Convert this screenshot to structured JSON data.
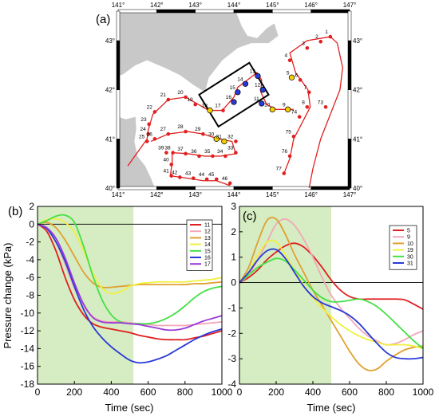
{
  "figure": {
    "panel_labels": [
      "(a)",
      "(b)",
      "(c)"
    ]
  },
  "colors": {
    "land": "#c8c8c8",
    "sea": "#ffffff",
    "route": "#e02020",
    "highlight_yellow": "#f5d000",
    "highlight_blue": "#2a3ad8",
    "shade": "#d6ecc2",
    "zero_line": "#000000"
  },
  "chart_data": [
    {
      "type": "map",
      "panel": "(a)",
      "lon_ticks_top": [
        "141°",
        "142°",
        "143°",
        "144°",
        "145°",
        "146°",
        "147°"
      ],
      "lon_ticks_bottom": [
        "141°",
        "142°",
        "143°",
        "144°",
        "145°",
        "146°",
        "147°"
      ],
      "lat_ticks_left": [
        "40°",
        "41°",
        "42°",
        "43°"
      ],
      "lat_ticks_right": [
        "40°",
        "41°",
        "42°",
        "43°"
      ],
      "xlim": [
        141,
        147
      ],
      "ylim": [
        40,
        43.6
      ],
      "routes": [
        {
          "points": [
            [
              145.95,
              40.0
            ],
            [
              146.05,
              40.4
            ],
            [
              146.25,
              41.0
            ],
            [
              146.55,
              41.6
            ],
            [
              146.75,
              42.0
            ],
            [
              146.82,
              42.45
            ],
            [
              146.68,
              42.95
            ],
            [
              146.5,
              43.08
            ]
          ]
        },
        {
          "points": [
            [
              145.3,
              40.3
            ],
            [
              145.45,
              40.6
            ],
            [
              145.55,
              41.0
            ],
            [
              145.85,
              41.45
            ],
            [
              145.98,
              41.65
            ],
            [
              145.92,
              42.0
            ],
            [
              145.6,
              42.35
            ],
            [
              145.45,
              42.75
            ],
            [
              145.9,
              43.0
            ],
            [
              146.5,
              43.08
            ]
          ]
        },
        {
          "points": [
            [
              145.55,
              41.6
            ],
            [
              145.1,
              41.6
            ],
            [
              144.85,
              41.7
            ],
            [
              144.7,
              41.95
            ],
            [
              144.72,
              42.2
            ],
            [
              144.6,
              42.35
            ],
            [
              144.35,
              42.2
            ],
            [
              144.1,
              42.05
            ],
            [
              144.0,
              41.85
            ],
            [
              143.7,
              41.58
            ],
            [
              143.35,
              41.58
            ],
            [
              142.75,
              41.85
            ],
            [
              142.3,
              41.8
            ],
            [
              141.9,
              41.5
            ],
            [
              141.78,
              41.18
            ],
            [
              141.75,
              41.0
            ],
            [
              141.25,
              40.45
            ]
          ]
        },
        {
          "points": [
            [
              141.85,
              40.95
            ],
            [
              142.3,
              41.1
            ],
            [
              142.8,
              41.15
            ],
            [
              143.2,
              41.1
            ],
            [
              143.6,
              41.0
            ],
            [
              143.95,
              40.95
            ],
            [
              144.05,
              40.7
            ],
            [
              143.65,
              40.65
            ],
            [
              143.25,
              40.65
            ],
            [
              142.8,
              40.7
            ],
            [
              142.4,
              40.72
            ],
            [
              142.4,
              40.5
            ],
            [
              142.35,
              40.25
            ],
            [
              142.8,
              40.2
            ],
            [
              143.2,
              40.15
            ],
            [
              143.55,
              40.15
            ],
            [
              143.9,
              40.05
            ]
          ]
        }
      ],
      "stations": [
        {
          "id": "1",
          "lon": 146.5,
          "lat": 43.08,
          "color": "red"
        },
        {
          "id": "2",
          "lon": 146.25,
          "lat": 42.98,
          "color": "red"
        },
        {
          "id": "3",
          "lon": 145.9,
          "lat": 42.85,
          "color": "red"
        },
        {
          "id": "4",
          "lon": 145.45,
          "lat": 42.6,
          "color": "red"
        },
        {
          "id": "5",
          "lon": 145.5,
          "lat": 42.25,
          "color": "yellow"
        },
        {
          "id": "6",
          "lon": 145.72,
          "lat": 42.2,
          "color": "red"
        },
        {
          "id": "7",
          "lon": 145.95,
          "lat": 41.95,
          "color": "red"
        },
        {
          "id": "8",
          "lon": 145.9,
          "lat": 41.65,
          "color": "red"
        },
        {
          "id": "9",
          "lon": 145.4,
          "lat": 41.6,
          "color": "yellow"
        },
        {
          "id": "10",
          "lon": 145.0,
          "lat": 41.6,
          "color": "yellow"
        },
        {
          "id": "11",
          "lon": 144.72,
          "lat": 41.72,
          "color": "blue"
        },
        {
          "id": "12",
          "lon": 144.75,
          "lat": 42.0,
          "color": "blue"
        },
        {
          "id": "13",
          "lon": 144.62,
          "lat": 42.28,
          "color": "blue"
        },
        {
          "id": "14",
          "lon": 144.3,
          "lat": 42.12,
          "color": "blue"
        },
        {
          "id": "15",
          "lon": 144.1,
          "lat": 41.95,
          "color": "blue"
        },
        {
          "id": "16",
          "lon": 144.0,
          "lat": 41.75,
          "color": "blue"
        },
        {
          "id": "17",
          "lon": 143.72,
          "lat": 41.58,
          "color": "red"
        },
        {
          "id": "18",
          "lon": 143.38,
          "lat": 41.58,
          "color": "yellow"
        },
        {
          "id": "19",
          "lon": 143.0,
          "lat": 41.7,
          "color": "red"
        },
        {
          "id": "20",
          "lon": 142.75,
          "lat": 41.85,
          "color": "red"
        },
        {
          "id": "21",
          "lon": 142.3,
          "lat": 41.8,
          "color": "red"
        },
        {
          "id": "22",
          "lon": 141.95,
          "lat": 41.55,
          "color": "red"
        },
        {
          "id": "23",
          "lon": 141.8,
          "lat": 41.3,
          "color": "red"
        },
        {
          "id": "24",
          "lon": 141.78,
          "lat": 41.1,
          "color": "red"
        },
        {
          "id": "25",
          "lon": 141.75,
          "lat": 40.95,
          "color": "red"
        },
        {
          "id": "26",
          "lon": 141.95,
          "lat": 41.0,
          "color": "red"
        },
        {
          "id": "27",
          "lon": 142.3,
          "lat": 41.1,
          "color": "red"
        },
        {
          "id": "28",
          "lon": 142.75,
          "lat": 41.15,
          "color": "red"
        },
        {
          "id": "29",
          "lon": 143.2,
          "lat": 41.1,
          "color": "red"
        },
        {
          "id": "30",
          "lon": 143.55,
          "lat": 41.0,
          "color": "yellow"
        },
        {
          "id": "31",
          "lon": 143.75,
          "lat": 40.95,
          "color": "yellow"
        },
        {
          "id": "32",
          "lon": 144.05,
          "lat": 40.95,
          "color": "red"
        },
        {
          "id": "33",
          "lon": 144.05,
          "lat": 40.72,
          "color": "red"
        },
        {
          "id": "34",
          "lon": 143.78,
          "lat": 40.65,
          "color": "red"
        },
        {
          "id": "35",
          "lon": 143.45,
          "lat": 40.65,
          "color": "red"
        },
        {
          "id": "36",
          "lon": 143.1,
          "lat": 40.65,
          "color": "red"
        },
        {
          "id": "37",
          "lon": 142.75,
          "lat": 40.7,
          "color": "red"
        },
        {
          "id": "38",
          "lon": 142.42,
          "lat": 40.72,
          "color": "red"
        },
        {
          "id": "39",
          "lon": 142.25,
          "lat": 40.72,
          "color": "red"
        },
        {
          "id": "40",
          "lon": 142.38,
          "lat": 40.48,
          "color": "red"
        },
        {
          "id": "41",
          "lon": 142.38,
          "lat": 40.25,
          "color": "red"
        },
        {
          "id": "42",
          "lon": 142.6,
          "lat": 40.22,
          "color": "red"
        },
        {
          "id": "43",
          "lon": 142.95,
          "lat": 40.2,
          "color": "red"
        },
        {
          "id": "44",
          "lon": 143.3,
          "lat": 40.18,
          "color": "red"
        },
        {
          "id": "45",
          "lon": 143.55,
          "lat": 40.18,
          "color": "red"
        },
        {
          "id": "46",
          "lon": 143.9,
          "lat": 40.1,
          "color": "red"
        },
        {
          "id": "73",
          "lon": 146.38,
          "lat": 41.65,
          "color": "red"
        },
        {
          "id": "74",
          "lon": 145.7,
          "lat": 41.45,
          "color": "red"
        },
        {
          "id": "75",
          "lon": 145.55,
          "lat": 41.05,
          "color": "red"
        },
        {
          "id": "76",
          "lon": 145.45,
          "lat": 40.65,
          "color": "red"
        },
        {
          "id": "77",
          "lon": 145.3,
          "lat": 40.3,
          "color": "red"
        }
      ],
      "box": [
        [
          143.1,
          41.9
        ],
        [
          144.4,
          42.55
        ],
        [
          144.9,
          41.9
        ],
        [
          143.6,
          41.25
        ]
      ]
    },
    {
      "type": "line",
      "panel": "(b)",
      "xlabel": "Time (sec)",
      "ylabel": "Pressure change (kPa)",
      "xlim": [
        0,
        1000
      ],
      "ylim": [
        -18,
        2
      ],
      "xticks": [
        0,
        200,
        400,
        600,
        800,
        1000
      ],
      "yticks": [
        2,
        0,
        -2,
        -4,
        -6,
        -8,
        -10,
        -12,
        -14,
        -16,
        -18
      ],
      "ytick_labels": [
        "2",
        "0",
        "-2",
        "-4",
        "-6",
        "-8",
        "-10",
        "-12",
        "-14",
        "-16",
        "-18"
      ],
      "shaded_x": [
        0,
        520
      ],
      "x": [
        0,
        50,
        100,
        150,
        200,
        250,
        300,
        350,
        400,
        450,
        500,
        550,
        600,
        650,
        700,
        750,
        800,
        850,
        900,
        950,
        1000
      ],
      "series": [
        {
          "name": "11",
          "color": "#e02020",
          "values": [
            0,
            -0.8,
            -3.0,
            -6.0,
            -8.5,
            -10.2,
            -11.2,
            -11.6,
            -11.8,
            -12.0,
            -12.2,
            -12.5,
            -12.7,
            -12.9,
            -13.0,
            -13.0,
            -13.0,
            -12.8,
            -12.6,
            -12.3,
            -12.0
          ]
        },
        {
          "name": "12",
          "color": "#f2a8b8",
          "values": [
            0,
            -0.5,
            -2.0,
            -4.5,
            -7.2,
            -9.2,
            -10.4,
            -10.9,
            -11.0,
            -11.0,
            -11.1,
            -11.2,
            -11.3,
            -11.4,
            -11.4,
            -11.4,
            -11.4,
            -11.3,
            -11.2,
            -11.1,
            -11.0
          ]
        },
        {
          "name": "13",
          "color": "#e0a030",
          "values": [
            0,
            0.2,
            -0.4,
            -1.8,
            -3.6,
            -5.4,
            -6.6,
            -7.1,
            -7.1,
            -7.0,
            -6.9,
            -6.8,
            -6.8,
            -6.8,
            -6.8,
            -6.8,
            -6.8,
            -6.7,
            -6.7,
            -6.6,
            -6.5
          ]
        },
        {
          "name": "14",
          "color": "#f0f040",
          "values": [
            0,
            0.5,
            0.6,
            0.2,
            -0.9,
            -3.0,
            -5.5,
            -7.2,
            -7.8,
            -7.6,
            -7.0,
            -6.7,
            -6.6,
            -6.5,
            -6.5,
            -6.5,
            -6.5,
            -6.4,
            -6.3,
            -6.2,
            -6.0
          ]
        },
        {
          "name": "15",
          "color": "#44e044",
          "values": [
            0,
            0.4,
            0.9,
            1.0,
            0.2,
            -2.5,
            -5.8,
            -8.5,
            -10.2,
            -11.0,
            -11.2,
            -11.2,
            -11.2,
            -11.0,
            -10.6,
            -10.0,
            -9.2,
            -8.3,
            -7.6,
            -7.2,
            -7.0
          ]
        },
        {
          "name": "16",
          "color": "#2a3ad8",
          "values": [
            0,
            -0.5,
            -2.0,
            -4.2,
            -7.0,
            -9.6,
            -11.5,
            -12.8,
            -13.8,
            -14.6,
            -15.3,
            -15.6,
            -15.5,
            -15.2,
            -14.8,
            -14.2,
            -13.6,
            -13.0,
            -12.5,
            -12.1,
            -11.8
          ]
        },
        {
          "name": "17",
          "color": "#9a3ad8",
          "values": [
            0,
            -0.4,
            -1.6,
            -3.8,
            -6.6,
            -9.0,
            -10.5,
            -11.0,
            -11.1,
            -11.1,
            -11.2,
            -11.3,
            -11.5,
            -11.7,
            -11.9,
            -11.9,
            -11.7,
            -11.3,
            -10.9,
            -10.6,
            -10.3
          ]
        }
      ]
    },
    {
      "type": "line",
      "panel": "(c)",
      "xlabel": "Time (sec)",
      "xlim": [
        0,
        1000
      ],
      "ylim": [
        -4,
        3
      ],
      "xticks": [
        0,
        200,
        400,
        600,
        800,
        1000
      ],
      "yticks": [
        3,
        2,
        1,
        0,
        -1,
        -2,
        -3,
        -4
      ],
      "ytick_labels": [
        "3",
        "2",
        "1",
        "0",
        "-1",
        "-2",
        "-3",
        "-4"
      ],
      "shaded_x": [
        0,
        500
      ],
      "x": [
        0,
        50,
        100,
        150,
        200,
        250,
        300,
        350,
        400,
        450,
        500,
        550,
        600,
        650,
        700,
        750,
        800,
        850,
        900,
        950,
        1000
      ],
      "series": [
        {
          "name": "5",
          "color": "#e02020",
          "values": [
            0,
            0.2,
            0.5,
            0.9,
            1.2,
            1.45,
            1.55,
            1.4,
            1.05,
            0.6,
            0.1,
            -0.3,
            -0.55,
            -0.65,
            -0.65,
            -0.65,
            -0.65,
            -0.65,
            -0.68,
            -0.85,
            -1.05
          ]
        },
        {
          "name": "9",
          "color": "#f2a8b8",
          "values": [
            0,
            0.3,
            0.9,
            1.6,
            2.3,
            2.5,
            2.25,
            1.7,
            1.0,
            0.2,
            -0.5,
            -1.0,
            -1.4,
            -1.8,
            -2.1,
            -2.3,
            -2.45,
            -2.4,
            -2.25,
            -2.05,
            -1.9
          ]
        },
        {
          "name": "10",
          "color": "#e0a030",
          "values": [
            0,
            0.6,
            1.6,
            2.45,
            2.5,
            1.9,
            1.1,
            0.4,
            -0.3,
            -0.9,
            -1.5,
            -2.1,
            -2.7,
            -3.2,
            -3.45,
            -3.4,
            -3.1,
            -2.85,
            -2.65,
            -2.55,
            -2.5
          ]
        },
        {
          "name": "19",
          "color": "#f0f040",
          "values": [
            0,
            0.4,
            1.1,
            1.6,
            1.6,
            1.1,
            0.5,
            -0.1,
            -0.6,
            -1.0,
            -1.35,
            -1.65,
            -1.9,
            -2.1,
            -2.25,
            -2.35,
            -2.45,
            -2.45,
            -2.45,
            -2.5,
            -2.6
          ]
        },
        {
          "name": "30",
          "color": "#44e044",
          "values": [
            0,
            0.3,
            0.6,
            0.8,
            0.95,
            0.85,
            0.5,
            0.1,
            -0.3,
            -0.6,
            -0.75,
            -0.75,
            -0.7,
            -0.65,
            -0.75,
            -0.95,
            -1.25,
            -1.6,
            -1.95,
            -2.3,
            -2.6
          ]
        },
        {
          "name": "31",
          "color": "#2a3ad8",
          "values": [
            0,
            0.4,
            0.9,
            1.25,
            1.3,
            0.95,
            0.4,
            -0.15,
            -0.55,
            -0.8,
            -0.95,
            -1.1,
            -1.3,
            -1.6,
            -2.0,
            -2.4,
            -2.75,
            -2.95,
            -3.0,
            -3.0,
            -2.95
          ]
        }
      ]
    }
  ]
}
